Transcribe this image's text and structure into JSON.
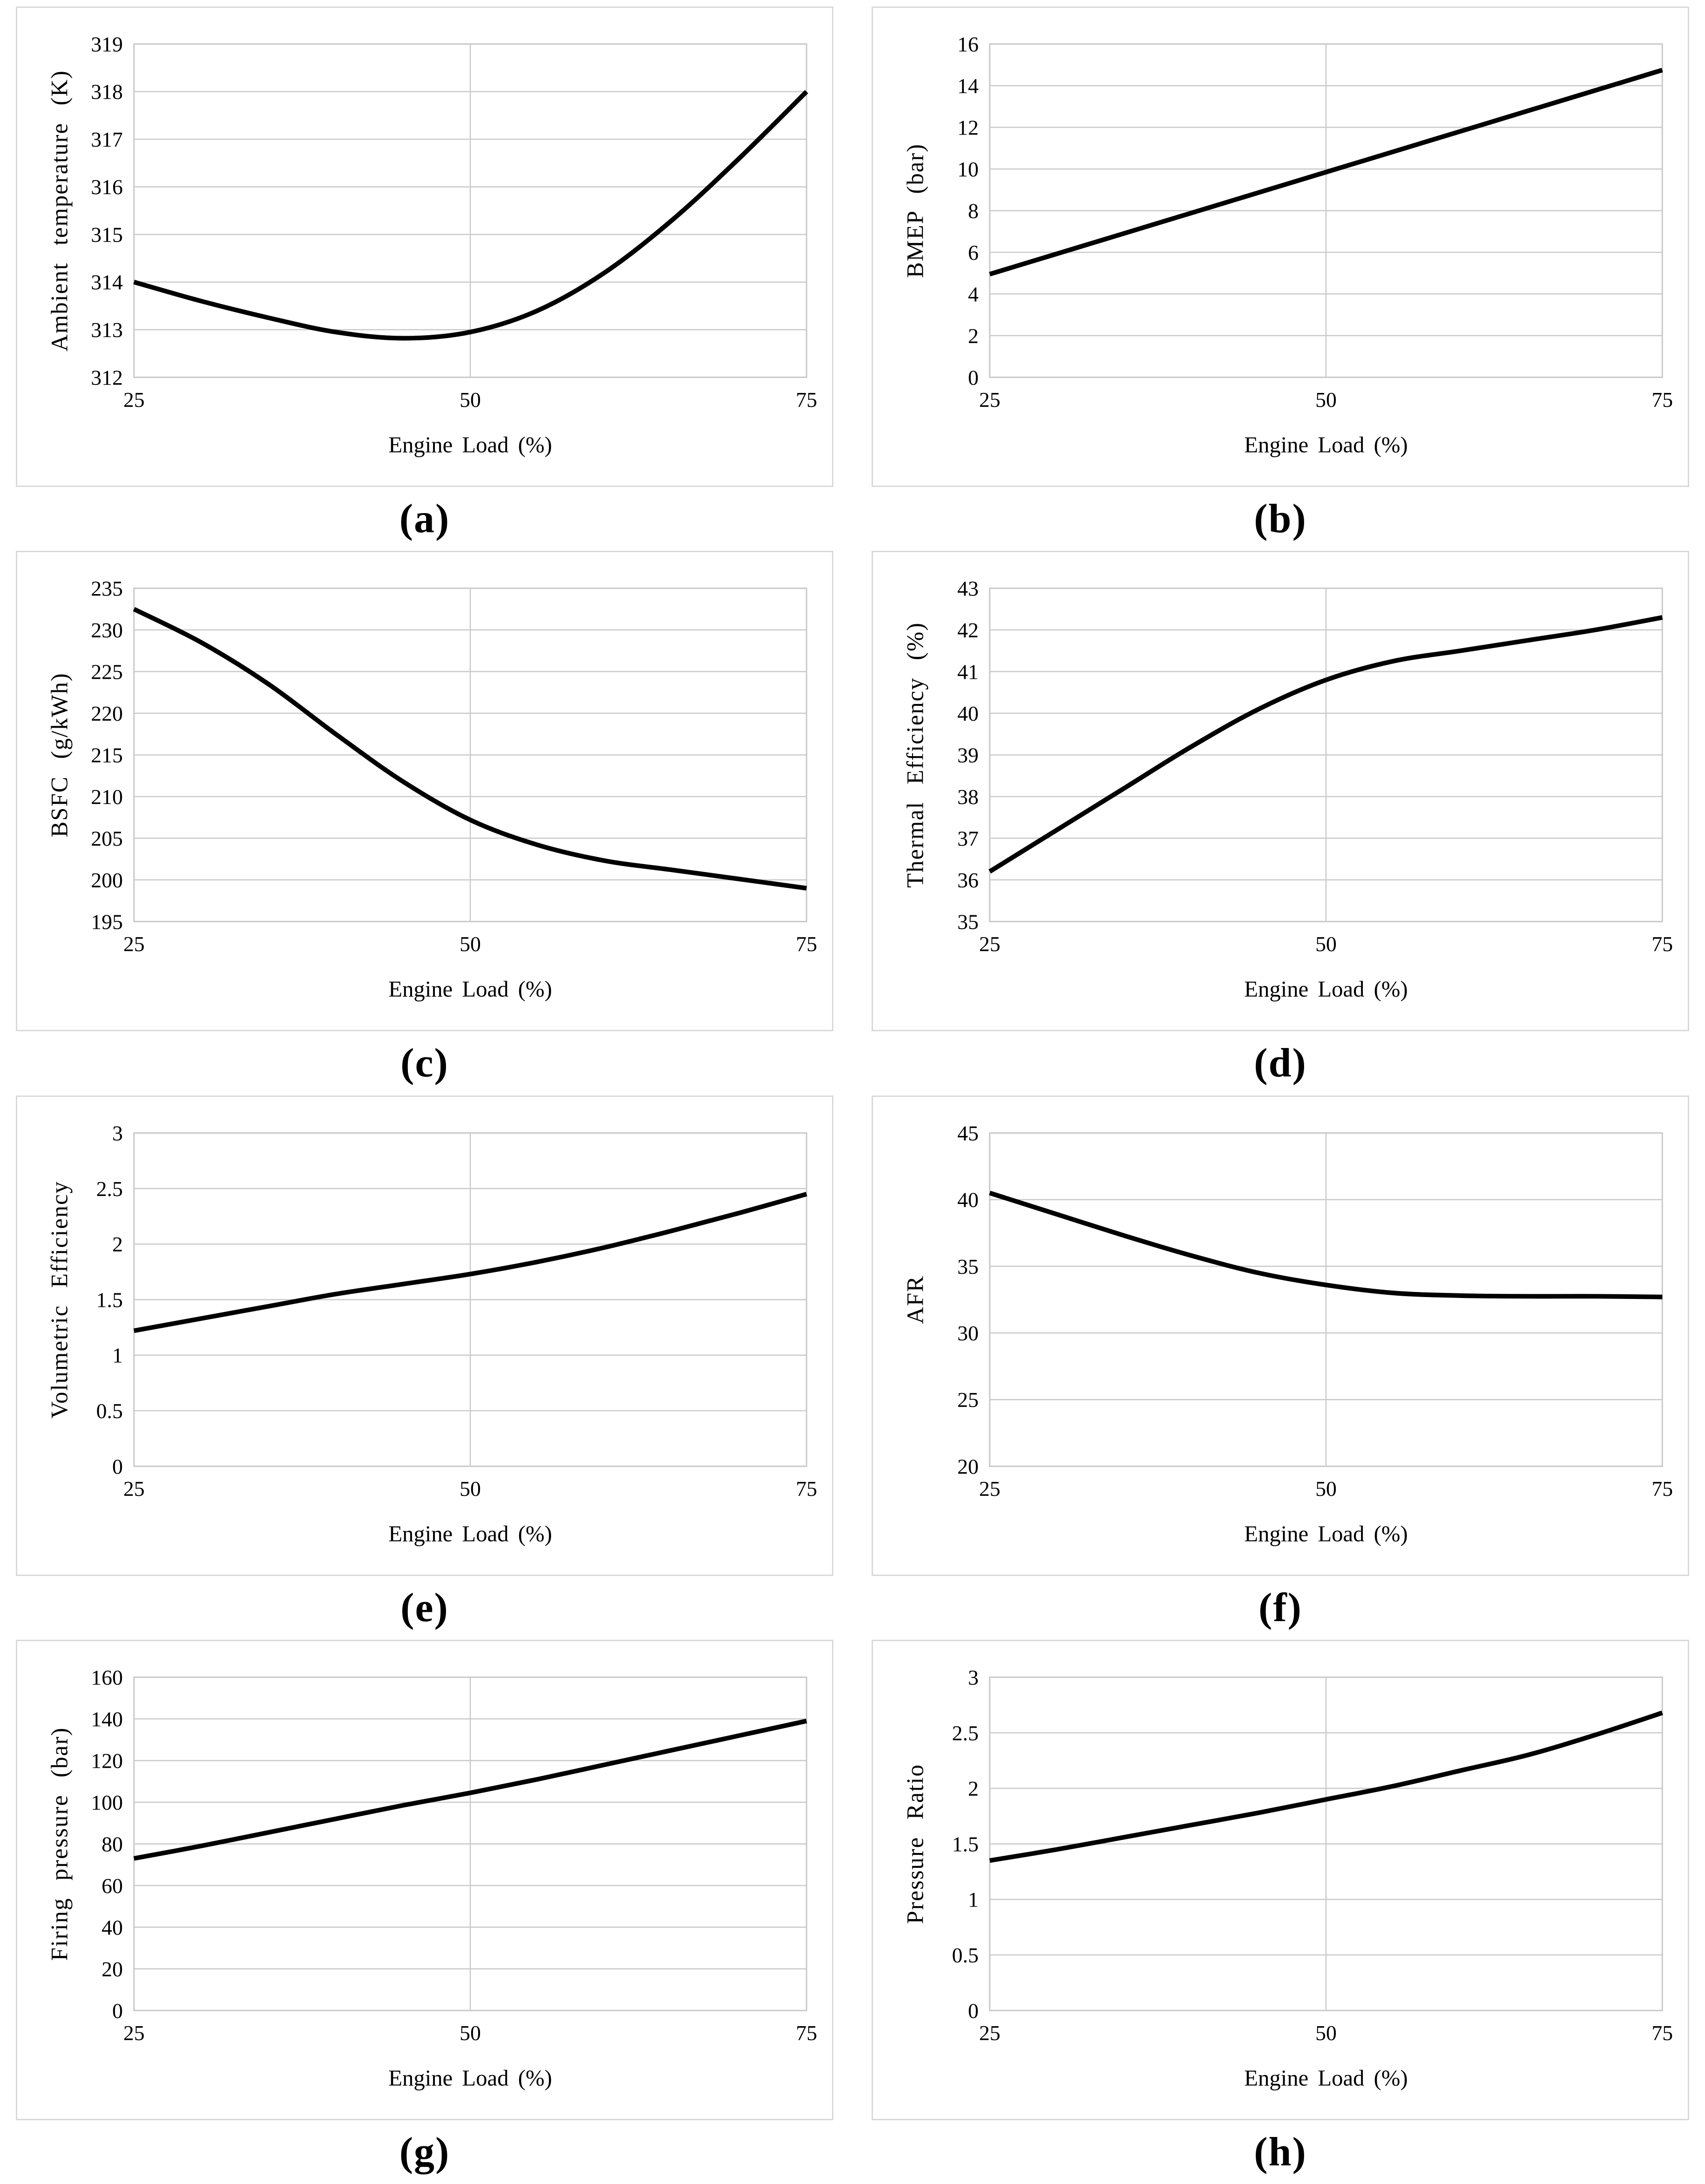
{
  "figure": {
    "x_axis_label": "Engine Load (%)",
    "x_ticks": [
      "25",
      "50",
      "75"
    ],
    "grid_color": "#c9c9c9",
    "border_color": "#d9d9d9",
    "line_color": "#000000",
    "text_color": "#000000",
    "background": "#ffffff"
  },
  "chart_data": [
    {
      "type": "line",
      "panel_label": "(a)",
      "ylabel": "Ambient temperature (K)",
      "xlabel": "Engine Load (%)",
      "xlim": [
        25,
        75
      ],
      "ylim": [
        312,
        319
      ],
      "xticks": [
        25,
        50,
        75
      ],
      "yticks": [
        312,
        313,
        314,
        315,
        316,
        317,
        318,
        319
      ],
      "x": [
        25,
        30,
        35,
        40,
        45,
        50,
        55,
        60,
        65,
        70,
        75
      ],
      "y": [
        314.0,
        313.6,
        313.25,
        312.95,
        312.82,
        312.95,
        313.4,
        314.2,
        315.3,
        316.6,
        318.0
      ],
      "legend": null,
      "grid": "horizontal + center vertical"
    },
    {
      "type": "line",
      "panel_label": "(b)",
      "ylabel": "BMEP (bar)",
      "xlabel": "Engine Load (%)",
      "xlim": [
        25,
        75
      ],
      "ylim": [
        0,
        16
      ],
      "xticks": [
        25,
        50,
        75
      ],
      "yticks": [
        0,
        2,
        4,
        6,
        8,
        10,
        12,
        14,
        16
      ],
      "x": [
        25,
        30,
        35,
        40,
        45,
        50,
        55,
        60,
        65,
        70,
        75
      ],
      "y": [
        4.95,
        5.93,
        6.91,
        7.89,
        8.87,
        9.85,
        10.83,
        11.81,
        12.79,
        13.77,
        14.75
      ],
      "legend": null,
      "grid": "horizontal + center vertical"
    },
    {
      "type": "line",
      "panel_label": "(c)",
      "ylabel": "BSFC (g/kWh)",
      "xlabel": "Engine Load (%)",
      "xlim": [
        25,
        75
      ],
      "ylim": [
        195,
        235
      ],
      "xticks": [
        25,
        50,
        75
      ],
      "yticks": [
        195,
        200,
        205,
        210,
        215,
        220,
        225,
        230,
        235
      ],
      "x": [
        25,
        30,
        35,
        40,
        45,
        50,
        55,
        60,
        65,
        70,
        75
      ],
      "y": [
        232.5,
        228.5,
        223.5,
        217.5,
        211.8,
        207.2,
        204.2,
        202.3,
        201.2,
        200.1,
        199.0
      ],
      "legend": null,
      "grid": "horizontal + center vertical"
    },
    {
      "type": "line",
      "panel_label": "(d)",
      "ylabel": "Thermal Efficiency (%)",
      "xlabel": "Engine Load (%)",
      "xlim": [
        25,
        75
      ],
      "ylim": [
        35,
        43
      ],
      "xticks": [
        25,
        50,
        75
      ],
      "yticks": [
        35,
        36,
        37,
        38,
        39,
        40,
        41,
        42,
        43
      ],
      "x": [
        25,
        30,
        35,
        40,
        45,
        50,
        55,
        60,
        65,
        70,
        75
      ],
      "y": [
        36.2,
        37.2,
        38.2,
        39.2,
        40.1,
        40.8,
        41.25,
        41.5,
        41.75,
        42.0,
        42.3
      ],
      "legend": null,
      "grid": "horizontal + center vertical"
    },
    {
      "type": "line",
      "panel_label": "(e)",
      "ylabel": "Volumetric Efficiency",
      "xlabel": "Engine Load (%)",
      "xlim": [
        25,
        75
      ],
      "ylim": [
        0,
        3
      ],
      "xticks": [
        25,
        50,
        75
      ],
      "yticks": [
        0,
        0.5,
        1,
        1.5,
        2,
        2.5,
        3
      ],
      "x": [
        25,
        30,
        35,
        40,
        45,
        50,
        55,
        60,
        65,
        70,
        75
      ],
      "y": [
        1.22,
        1.33,
        1.44,
        1.55,
        1.64,
        1.73,
        1.84,
        1.97,
        2.12,
        2.28,
        2.45
      ],
      "legend": null,
      "grid": "horizontal + center vertical"
    },
    {
      "type": "line",
      "panel_label": "(f)",
      "ylabel": "AFR",
      "xlabel": "Engine Load (%)",
      "xlim": [
        25,
        75
      ],
      "ylim": [
        20,
        45
      ],
      "xticks": [
        25,
        50,
        75
      ],
      "yticks": [
        20,
        25,
        30,
        35,
        40,
        45
      ],
      "x": [
        25,
        30,
        35,
        40,
        45,
        50,
        55,
        60,
        65,
        70,
        75
      ],
      "y": [
        40.5,
        38.9,
        37.3,
        35.8,
        34.5,
        33.6,
        33.0,
        32.8,
        32.75,
        32.75,
        32.7
      ],
      "legend": null,
      "grid": "horizontal + center vertical"
    },
    {
      "type": "line",
      "panel_label": "(g)",
      "ylabel": "Firing pressure (bar)",
      "xlabel": "Engine Load (%)",
      "xlim": [
        25,
        75
      ],
      "ylim": [
        0,
        160
      ],
      "xticks": [
        25,
        50,
        75
      ],
      "yticks": [
        0,
        20,
        40,
        60,
        80,
        100,
        120,
        140,
        160
      ],
      "x": [
        25,
        30,
        35,
        40,
        45,
        50,
        55,
        60,
        65,
        70,
        75
      ],
      "y": [
        73,
        79,
        85.5,
        92,
        98.5,
        104.5,
        111,
        118,
        125,
        132,
        139
      ],
      "legend": null,
      "grid": "horizontal + center vertical"
    },
    {
      "type": "line",
      "panel_label": "(h)",
      "ylabel": "Pressure Ratio",
      "xlabel": "Engine Load (%)",
      "xlim": [
        25,
        75
      ],
      "ylim": [
        0,
        3
      ],
      "xticks": [
        25,
        50,
        75
      ],
      "yticks": [
        0,
        0.5,
        1,
        1.5,
        2,
        2.5,
        3
      ],
      "x": [
        25,
        30,
        35,
        40,
        45,
        50,
        55,
        60,
        65,
        70,
        75
      ],
      "y": [
        1.35,
        1.45,
        1.56,
        1.67,
        1.78,
        1.9,
        2.02,
        2.16,
        2.3,
        2.48,
        2.68
      ],
      "legend": null,
      "grid": "horizontal + center vertical"
    }
  ]
}
